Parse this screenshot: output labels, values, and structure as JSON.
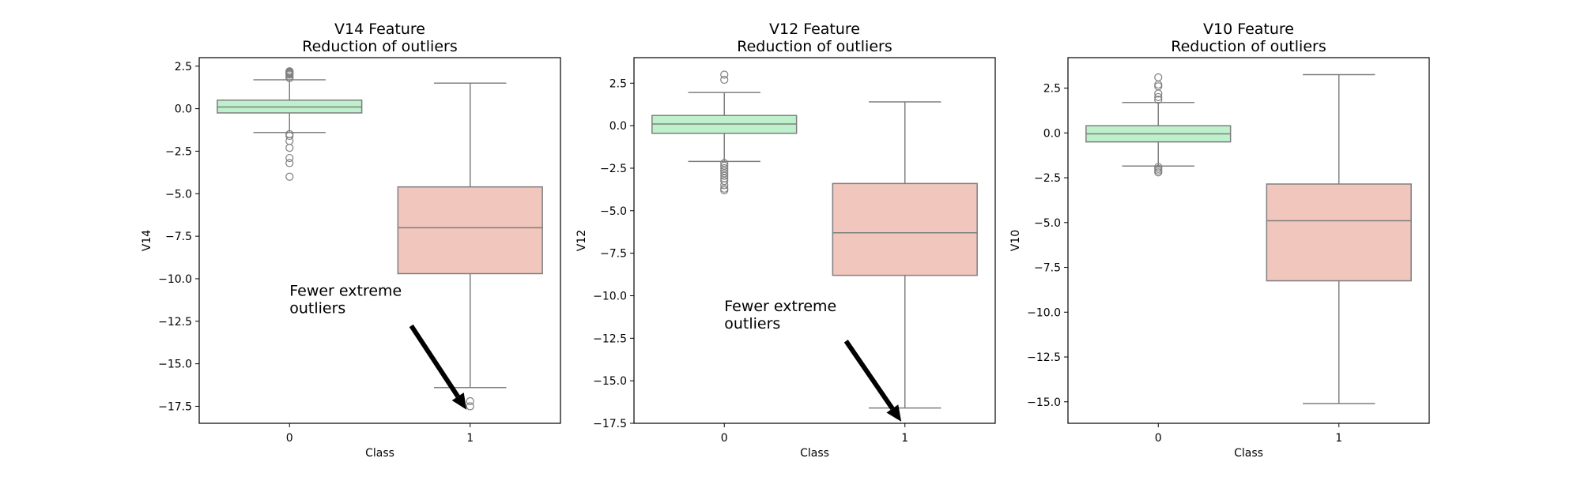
{
  "colors": {
    "class_0": "#bdf0cb",
    "class_1": "#f1c6bc",
    "line": "#7f7f7f",
    "arrow": "#000000"
  },
  "chart_data": [
    {
      "type": "box",
      "title": "V14 Feature\nReduction of outliers",
      "xlabel": "Class",
      "ylabel": "V14",
      "categories": [
        "0",
        "1"
      ],
      "ylim": [
        -18.5,
        3.0
      ],
      "yticks": [
        2.5,
        0.0,
        -2.5,
        -5.0,
        -7.5,
        -10.0,
        -12.5,
        -15.0,
        -17.5
      ],
      "ytick_labels": [
        "2.5",
        "0.0",
        "−2.5",
        "−5.0",
        "−7.5",
        "−10.0",
        "−12.5",
        "−15.0",
        "−17.5"
      ],
      "boxes": [
        {
          "category": "0",
          "whisker_low": -1.4,
          "q1": -0.25,
          "median": 0.1,
          "q3": 0.5,
          "whisker_high": 1.7,
          "outliers": [
            1.8,
            1.9,
            2.0,
            2.05,
            2.1,
            2.15,
            2.2,
            -1.5,
            -1.6,
            -1.9,
            -2.3,
            -2.9,
            -3.2,
            -4.0
          ]
        },
        {
          "category": "1",
          "whisker_low": -16.4,
          "q1": -9.7,
          "median": -7.0,
          "q3": -4.6,
          "whisker_high": 1.5,
          "outliers": [
            -17.2,
            -17.5
          ]
        }
      ],
      "annotation": {
        "text": "Fewer extreme\n outliers",
        "text_x": 0.0,
        "text_y": -11.0,
        "arrow_to_x": 0.98,
        "arrow_to_y": -17.7
      }
    },
    {
      "type": "box",
      "title": "V12 Feature\nReduction of outliers",
      "xlabel": "Class",
      "ylabel": "V12",
      "categories": [
        "0",
        "1"
      ],
      "ylim": [
        -17.5,
        4.0
      ],
      "yticks": [
        2.5,
        0.0,
        -2.5,
        -5.0,
        -7.5,
        -10.0,
        -12.5,
        -15.0,
        -17.5
      ],
      "ytick_labels": [
        "2.5",
        "0.0",
        "−2.5",
        "−5.0",
        "−7.5",
        "−10.0",
        "−12.5",
        "−15.0",
        "−17.5"
      ],
      "boxes": [
        {
          "category": "0",
          "whisker_low": -2.1,
          "q1": -0.45,
          "median": 0.1,
          "q3": 0.6,
          "whisker_high": 1.95,
          "outliers": [
            3.0,
            2.7,
            -2.2,
            -2.35,
            -2.5,
            -2.65,
            -2.8,
            -2.95,
            -3.1,
            -3.25,
            -3.5,
            -3.7,
            -3.8
          ]
        },
        {
          "category": "1",
          "whisker_low": -16.6,
          "q1": -8.8,
          "median": -6.3,
          "q3": -3.4,
          "whisker_high": 1.4,
          "outliers": []
        }
      ],
      "annotation": {
        "text": "Fewer extreme\n outliers",
        "text_x": 0.0,
        "text_y": -10.9,
        "arrow_to_x": 0.98,
        "arrow_to_y": -17.4
      }
    },
    {
      "type": "box",
      "title": "V10 Feature\nReduction of outliers",
      "xlabel": "Class",
      "ylabel": "V10",
      "categories": [
        "0",
        "1"
      ],
      "ylim": [
        -16.2,
        4.2
      ],
      "yticks": [
        2.5,
        0.0,
        -2.5,
        -5.0,
        -7.5,
        -10.0,
        -12.5,
        -15.0
      ],
      "ytick_labels": [
        "2.5",
        "0.0",
        "−2.5",
        "−5.0",
        "−7.5",
        "−10.0",
        "−12.5",
        "−15.0"
      ],
      "boxes": [
        {
          "category": "0",
          "whisker_low": -1.85,
          "q1": -0.5,
          "median": -0.05,
          "q3": 0.4,
          "whisker_high": 1.7,
          "outliers": [
            3.1,
            2.7,
            2.6,
            2.2,
            2.0,
            1.85,
            -1.9,
            -2.0,
            -2.1,
            -2.2
          ]
        },
        {
          "category": "1",
          "whisker_low": -15.1,
          "q1": -8.25,
          "median": -4.9,
          "q3": -2.85,
          "whisker_high": 3.25,
          "outliers": []
        }
      ],
      "annotation": null
    }
  ]
}
